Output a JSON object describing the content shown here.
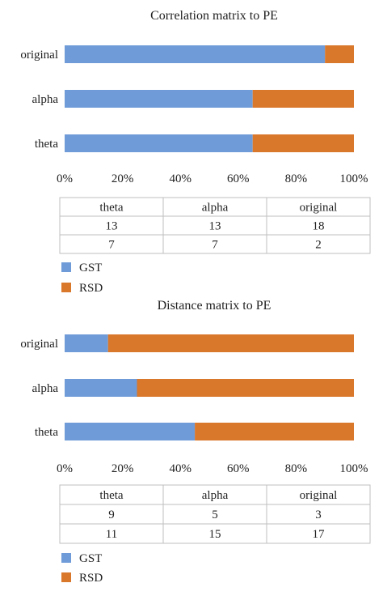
{
  "chart_data": [
    {
      "type": "bar",
      "orientation": "horizontal",
      "stacked": "percent",
      "title": "Correlation matrix to PE",
      "categories": [
        "original",
        "alpha",
        "theta"
      ],
      "series": [
        {
          "name": "GST",
          "values": [
            18,
            13,
            13
          ],
          "color": "#6f9bd8"
        },
        {
          "name": "RSD",
          "values": [
            2,
            7,
            7
          ],
          "color": "#d9772b"
        }
      ],
      "xlim": [
        0,
        100
      ],
      "xticks": [
        "0%",
        "20%",
        "40%",
        "60%",
        "80%",
        "100%"
      ],
      "grid": false,
      "legend": "bottom-left",
      "table": {
        "columns": [
          "theta",
          "alpha",
          "original"
        ],
        "rows": [
          [
            "13",
            "13",
            "18"
          ],
          [
            "7",
            "7",
            "2"
          ]
        ]
      }
    },
    {
      "type": "bar",
      "orientation": "horizontal",
      "stacked": "percent",
      "title": "Distance matrix to PE",
      "categories": [
        "original",
        "alpha",
        "theta"
      ],
      "series": [
        {
          "name": "GST",
          "values": [
            3,
            5,
            9
          ],
          "color": "#6f9bd8"
        },
        {
          "name": "RSD",
          "values": [
            17,
            15,
            11
          ],
          "color": "#d9772b"
        }
      ],
      "xlim": [
        0,
        100
      ],
      "xticks": [
        "0%",
        "20%",
        "40%",
        "60%",
        "80%",
        "100%"
      ],
      "grid": false,
      "legend": "bottom-left",
      "table": {
        "columns": [
          "theta",
          "alpha",
          "original"
        ],
        "rows": [
          [
            "9",
            "5",
            "3"
          ],
          [
            "11",
            "15",
            "17"
          ]
        ]
      }
    }
  ]
}
